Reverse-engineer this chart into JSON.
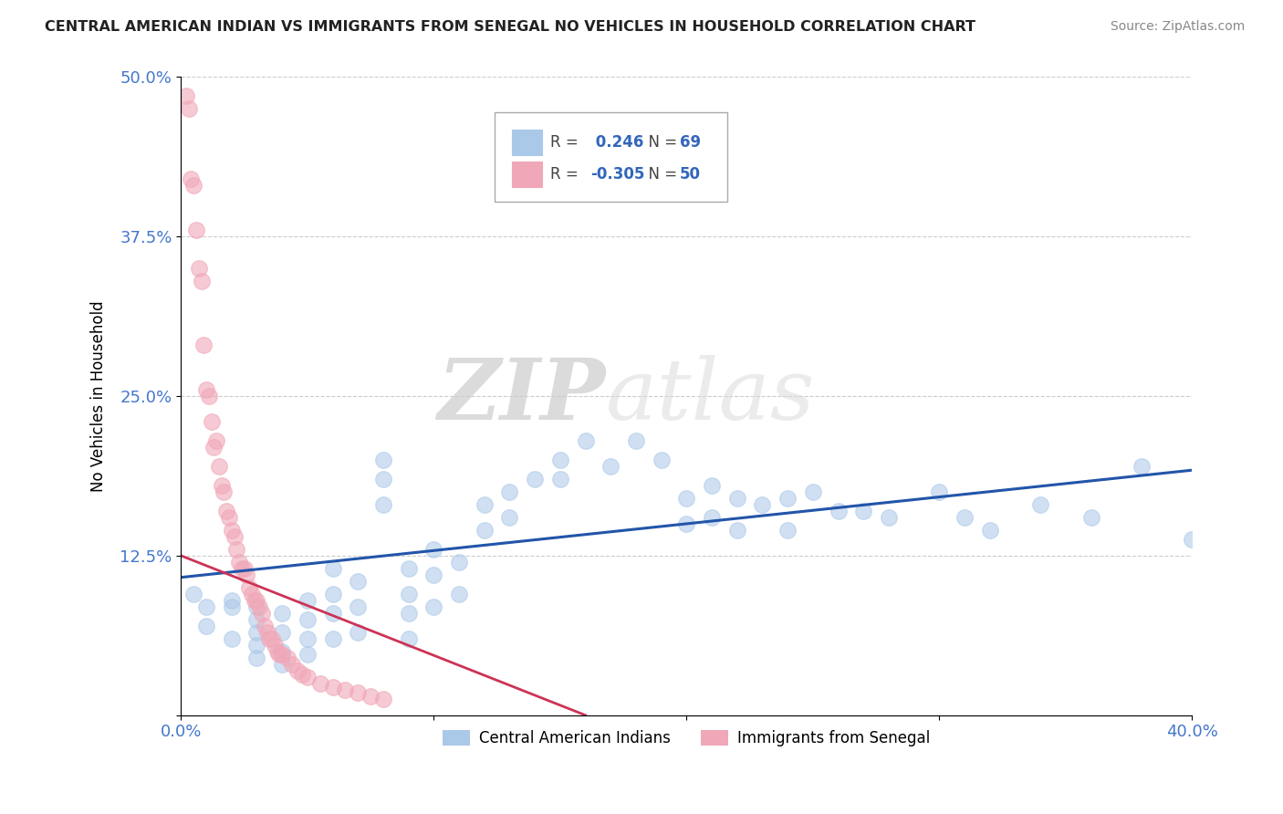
{
  "title": "CENTRAL AMERICAN INDIAN VS IMMIGRANTS FROM SENEGAL NO VEHICLES IN HOUSEHOLD CORRELATION CHART",
  "source": "Source: ZipAtlas.com",
  "ylabel": "No Vehicles in Household",
  "xlim": [
    0.0,
    0.4
  ],
  "ylim": [
    0.0,
    0.5
  ],
  "x_ticks": [
    0.0,
    0.1,
    0.2,
    0.3,
    0.4
  ],
  "x_tick_labels": [
    "0.0%",
    "",
    "",
    "",
    "40.0%"
  ],
  "y_ticks": [
    0.0,
    0.125,
    0.25,
    0.375,
    0.5
  ],
  "y_tick_labels": [
    "",
    "12.5%",
    "25.0%",
    "37.5%",
    "50.0%"
  ],
  "blue_R": 0.246,
  "blue_N": 69,
  "pink_R": -0.305,
  "pink_N": 50,
  "blue_color": "#aac8e8",
  "pink_color": "#f0a8b8",
  "blue_line_color": "#2255aa",
  "pink_line_color": "#cc3355",
  "legend_label_blue": "Central American Indians",
  "legend_label_pink": "Immigrants from Senegal",
  "watermark_zip": "ZIP",
  "watermark_atlas": "atlas",
  "blue_scatter_x": [
    0.005,
    0.01,
    0.01,
    0.02,
    0.02,
    0.02,
    0.03,
    0.03,
    0.03,
    0.03,
    0.03,
    0.04,
    0.04,
    0.04,
    0.04,
    0.05,
    0.05,
    0.05,
    0.05,
    0.06,
    0.06,
    0.06,
    0.06,
    0.07,
    0.07,
    0.07,
    0.08,
    0.08,
    0.08,
    0.09,
    0.09,
    0.09,
    0.09,
    0.1,
    0.1,
    0.1,
    0.11,
    0.11,
    0.12,
    0.12,
    0.13,
    0.13,
    0.14,
    0.15,
    0.15,
    0.16,
    0.17,
    0.18,
    0.19,
    0.2,
    0.2,
    0.21,
    0.21,
    0.22,
    0.22,
    0.23,
    0.24,
    0.24,
    0.25,
    0.26,
    0.27,
    0.28,
    0.3,
    0.31,
    0.32,
    0.34,
    0.36,
    0.38,
    0.4
  ],
  "blue_scatter_y": [
    0.095,
    0.085,
    0.07,
    0.09,
    0.085,
    0.06,
    0.085,
    0.075,
    0.065,
    0.055,
    0.045,
    0.08,
    0.065,
    0.05,
    0.04,
    0.09,
    0.075,
    0.06,
    0.048,
    0.115,
    0.095,
    0.08,
    0.06,
    0.105,
    0.085,
    0.065,
    0.2,
    0.185,
    0.165,
    0.115,
    0.095,
    0.08,
    0.06,
    0.13,
    0.11,
    0.085,
    0.12,
    0.095,
    0.165,
    0.145,
    0.175,
    0.155,
    0.185,
    0.2,
    0.185,
    0.215,
    0.195,
    0.215,
    0.2,
    0.17,
    0.15,
    0.18,
    0.155,
    0.17,
    0.145,
    0.165,
    0.17,
    0.145,
    0.175,
    0.16,
    0.16,
    0.155,
    0.175,
    0.155,
    0.145,
    0.165,
    0.155,
    0.195,
    0.138
  ],
  "pink_scatter_x": [
    0.002,
    0.003,
    0.004,
    0.005,
    0.006,
    0.007,
    0.008,
    0.009,
    0.01,
    0.011,
    0.012,
    0.013,
    0.014,
    0.015,
    0.016,
    0.017,
    0.018,
    0.019,
    0.02,
    0.021,
    0.022,
    0.023,
    0.024,
    0.025,
    0.026,
    0.027,
    0.028,
    0.029,
    0.03,
    0.031,
    0.032,
    0.033,
    0.034,
    0.035,
    0.036,
    0.037,
    0.038,
    0.039,
    0.04,
    0.042,
    0.044,
    0.046,
    0.048,
    0.05,
    0.055,
    0.06,
    0.065,
    0.07,
    0.075,
    0.08
  ],
  "pink_scatter_y": [
    0.485,
    0.475,
    0.42,
    0.415,
    0.38,
    0.35,
    0.34,
    0.29,
    0.255,
    0.25,
    0.23,
    0.21,
    0.215,
    0.195,
    0.18,
    0.175,
    0.16,
    0.155,
    0.145,
    0.14,
    0.13,
    0.12,
    0.115,
    0.115,
    0.11,
    0.1,
    0.095,
    0.09,
    0.09,
    0.085,
    0.08,
    0.07,
    0.065,
    0.06,
    0.06,
    0.055,
    0.05,
    0.048,
    0.048,
    0.045,
    0.04,
    0.035,
    0.032,
    0.03,
    0.025,
    0.022,
    0.02,
    0.018,
    0.015,
    0.013
  ],
  "blue_line_x": [
    0.0,
    0.4
  ],
  "blue_line_y": [
    0.108,
    0.192
  ],
  "pink_line_x": [
    0.0,
    0.16
  ],
  "pink_line_y": [
    0.125,
    0.0
  ]
}
